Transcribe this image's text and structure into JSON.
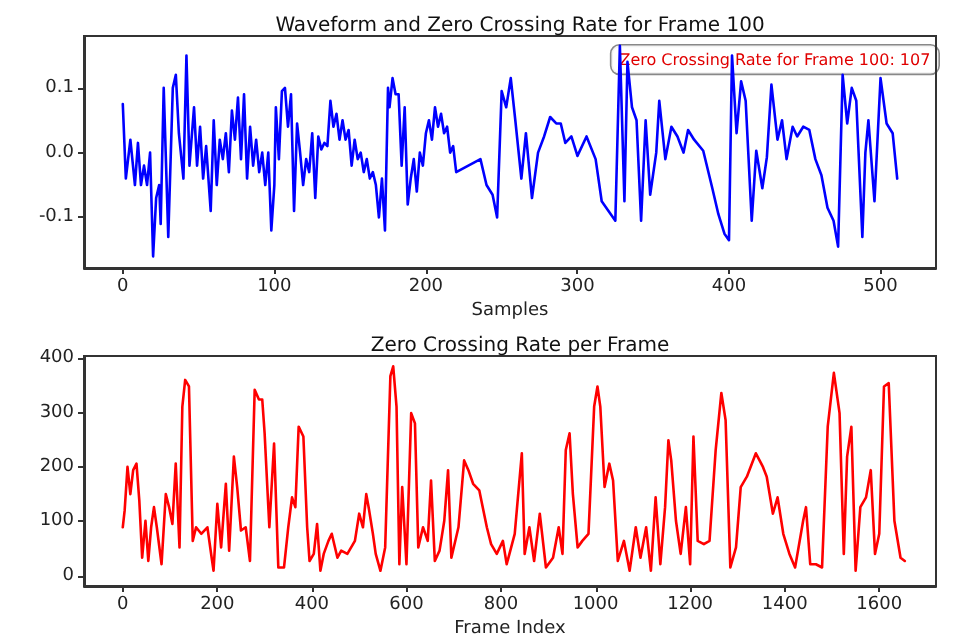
{
  "chart_data": [
    {
      "type": "line",
      "title": "Waveform and Zero Crossing Rate for Frame 100",
      "xlabel": "Samples",
      "annotations": [
        "Zero Crossing Rate for Frame 100: 107"
      ],
      "xlim": [
        -25.6,
        536.6
      ],
      "xticks": [
        0,
        100,
        200,
        300,
        400,
        500
      ],
      "ylim": [
        -0.178,
        0.18
      ],
      "yticks": [
        -0.1,
        {
          "value": 0,
          "label": "0.0"
        },
        0.1
      ],
      "grid": false,
      "marker": "none",
      "line_style": "solid",
      "series": [
        {
          "color": "#0000ff",
          "x": [
            0,
            2,
            5,
            8,
            10,
            12,
            14,
            16,
            18,
            20,
            22,
            24,
            25,
            27,
            30,
            33,
            35,
            37,
            40,
            42,
            44,
            47,
            49,
            51,
            53,
            55,
            58,
            60,
            62,
            64,
            66,
            68,
            70,
            72,
            74,
            76,
            78,
            80,
            82,
            84,
            86,
            88,
            90,
            92,
            94,
            96,
            98,
            100,
            101,
            103,
            105,
            107,
            109,
            111,
            113,
            115,
            117,
            119,
            121,
            123,
            125,
            127,
            129,
            131,
            133,
            135,
            137,
            139,
            141,
            143,
            145,
            147,
            149,
            151,
            153,
            155,
            157,
            159,
            161,
            163,
            165,
            167,
            169,
            171,
            173,
            175,
            176,
            178,
            180,
            182,
            184,
            186,
            188,
            190,
            192,
            194,
            196,
            198,
            200,
            202,
            204,
            206,
            208,
            210,
            212,
            214,
            216,
            218,
            220,
            236,
            240,
            244,
            247,
            250,
            253,
            256,
            259,
            263,
            266,
            270,
            274,
            278,
            282,
            286,
            289,
            292,
            296,
            300,
            306,
            312,
            316,
            322,
            325,
            328,
            331,
            333,
            336,
            339,
            342,
            345,
            348,
            352,
            354,
            358,
            362,
            366,
            370,
            373,
            377,
            383,
            389,
            393,
            397,
            400,
            402,
            405,
            408,
            411,
            415,
            418,
            422,
            425,
            428,
            432,
            435,
            438,
            442,
            445,
            449,
            453,
            457,
            461,
            465,
            469,
            472,
            475,
            478,
            481,
            484,
            488,
            490,
            492,
            496,
            500,
            504,
            508,
            511
          ],
          "values": [
            0.075,
            -0.04,
            0.02,
            -0.05,
            0.015,
            -0.05,
            -0.02,
            -0.05,
            0.0,
            -0.16,
            -0.07,
            -0.05,
            -0.11,
            0.1,
            -0.13,
            0.1,
            0.12,
            0.03,
            -0.04,
            0.15,
            -0.02,
            0.07,
            -0.02,
            0.04,
            -0.04,
            0.01,
            -0.09,
            0.05,
            -0.05,
            0.02,
            -0.01,
            0.03,
            -0.03,
            0.065,
            0.02,
            0.085,
            -0.01,
            0.09,
            -0.04,
            0.04,
            -0.02,
            0.02,
            -0.03,
            0.0,
            -0.05,
            0.0,
            -0.12,
            -0.05,
            0.07,
            -0.01,
            0.095,
            0.1,
            0.04,
            0.09,
            -0.09,
            0.045,
            0.0,
            -0.05,
            -0.01,
            -0.03,
            0.03,
            -0.07,
            0.025,
            0.005,
            0.015,
            0.01,
            0.08,
            0.04,
            0.06,
            0.02,
            0.05,
            0.02,
            0.035,
            -0.02,
            0.02,
            -0.01,
            0.0,
            -0.03,
            -0.01,
            -0.04,
            -0.03,
            -0.05,
            -0.1,
            -0.04,
            -0.12,
            0.1,
            0.07,
            0.115,
            0.09,
            0.09,
            -0.02,
            0.07,
            -0.08,
            -0.04,
            -0.01,
            -0.06,
            0.0,
            -0.02,
            0.03,
            0.05,
            0.02,
            0.07,
            0.04,
            0.06,
            0.03,
            0.04,
            0.0,
            0.01,
            -0.03,
            -0.01,
            -0.05,
            -0.065,
            -0.1,
            0.095,
            0.07,
            0.115,
            0.05,
            -0.04,
            0.03,
            -0.07,
            0.0,
            0.025,
            0.055,
            0.045,
            0.045,
            0.015,
            0.025,
            -0.005,
            0.025,
            -0.01,
            -0.075,
            -0.095,
            -0.105,
            0.165,
            -0.075,
            0.14,
            0.07,
            0.05,
            -0.105,
            0.05,
            -0.065,
            0.0,
            0.08,
            -0.01,
            0.04,
            0.025,
            0.0,
            0.035,
            0.02,
            0.003,
            -0.055,
            -0.095,
            -0.125,
            -0.135,
            0.15,
            0.03,
            0.11,
            0.08,
            -0.105,
            0.003,
            -0.055,
            -0.007,
            0.105,
            0.02,
            0.05,
            -0.01,
            0.04,
            0.025,
            0.04,
            0.035,
            -0.01,
            -0.035,
            -0.085,
            -0.105,
            -0.145,
            0.12,
            0.045,
            0.1,
            0.08,
            -0.13,
            0.0,
            0.05,
            -0.075,
            0.115,
            0.045,
            0.03,
            -0.04
          ]
        }
      ]
    },
    {
      "type": "line",
      "title": "Zero Crossing Rate per Frame",
      "xlabel": "Frame Index",
      "xlim": [
        -82,
        1720
      ],
      "xticks": [
        0,
        200,
        400,
        600,
        800,
        1000,
        1200,
        1400,
        1600
      ],
      "ylim": [
        -19,
        404
      ],
      "yticks": [
        0,
        100,
        200,
        300,
        400
      ],
      "grid": false,
      "marker": "none",
      "line_style": "solid",
      "series": [
        {
          "color": "#ff0000",
          "x": [
            0,
            4,
            10,
            16,
            22,
            29,
            35,
            41,
            48,
            54,
            60,
            66,
            72,
            82,
            91,
            98,
            105,
            112,
            120,
            126,
            132,
            140,
            148,
            155,
            166,
            179,
            188,
            192,
            200,
            208,
            218,
            225,
            235,
            242,
            250,
            260,
            269,
            279,
            288,
            295,
            300,
            310,
            320,
            329,
            341,
            350,
            358,
            365,
            372,
            382,
            390,
            395,
            404,
            411,
            418,
            425,
            435,
            442,
            454,
            462,
            475,
            491,
            500,
            508,
            515,
            520,
            529,
            535,
            545,
            555,
            566,
            572,
            579,
            585,
            591,
            600,
            610,
            618,
            625,
            635,
            645,
            652,
            660,
            670,
            680,
            688,
            695,
            710,
            722,
            731,
            741,
            754,
            770,
            779,
            791,
            804,
            812,
            829,
            844,
            850,
            860,
            870,
            882,
            895,
            910,
            922,
            930,
            937,
            945,
            952,
            962,
            972,
            985,
            997,
            1004,
            1010,
            1019,
            1029,
            1037,
            1047,
            1060,
            1072,
            1085,
            1095,
            1107,
            1117,
            1127,
            1137,
            1147,
            1154,
            1160,
            1170,
            1180,
            1191,
            1200,
            1207,
            1216,
            1229,
            1241,
            1254,
            1266,
            1275,
            1285,
            1297,
            1307,
            1320,
            1339,
            1354,
            1362,
            1375,
            1385,
            1397,
            1410,
            1422,
            1439,
            1445,
            1454,
            1466,
            1479,
            1491,
            1504,
            1516,
            1525,
            1532,
            1541,
            1550,
            1560,
            1572,
            1582,
            1591,
            1600,
            1610,
            1620,
            1632,
            1645,
            1654
          ],
          "values": [
            89,
            120,
            200,
            150,
            194,
            206,
            138,
            33,
            101,
            27,
            89,
            126,
            89,
            21,
            150,
            126,
            95,
            206,
            52,
            311,
            360,
            348,
            64,
            89,
            77,
            89,
            33,
            9,
            132,
            52,
            169,
            46,
            219,
            163,
            83,
            89,
            27,
            342,
            324,
            324,
            262,
            89,
            243,
            15,
            15,
            89,
            144,
            126,
            274,
            256,
            89,
            27,
            40,
            95,
            9,
            40,
            64,
            77,
            33,
            46,
            40,
            64,
            114,
            89,
            150,
            126,
            77,
            40,
            9,
            52,
            367,
            385,
            311,
            21,
            163,
            21,
            299,
            280,
            52,
            89,
            64,
            175,
            27,
            46,
            101,
            194,
            33,
            89,
            212,
            194,
            169,
            157,
            89,
            58,
            40,
            64,
            21,
            77,
            225,
            40,
            89,
            27,
            114,
            15,
            33,
            89,
            40,
            231,
            262,
            150,
            52,
            64,
            77,
            311,
            348,
            311,
            163,
            206,
            175,
            27,
            64,
            9,
            89,
            33,
            89,
            9,
            144,
            21,
            126,
            249,
            212,
            101,
            40,
            126,
            21,
            256,
            64,
            58,
            64,
            231,
            336,
            286,
            15,
            52,
            163,
            182,
            225,
            200,
            182,
            114,
            144,
            77,
            40,
            15,
            101,
            126,
            21,
            21,
            15,
            274,
            373,
            299,
            40,
            219,
            274,
            9,
            126,
            144,
            194,
            40,
            77,
            348,
            354,
            101,
            33,
            27
          ]
        }
      ]
    }
  ]
}
